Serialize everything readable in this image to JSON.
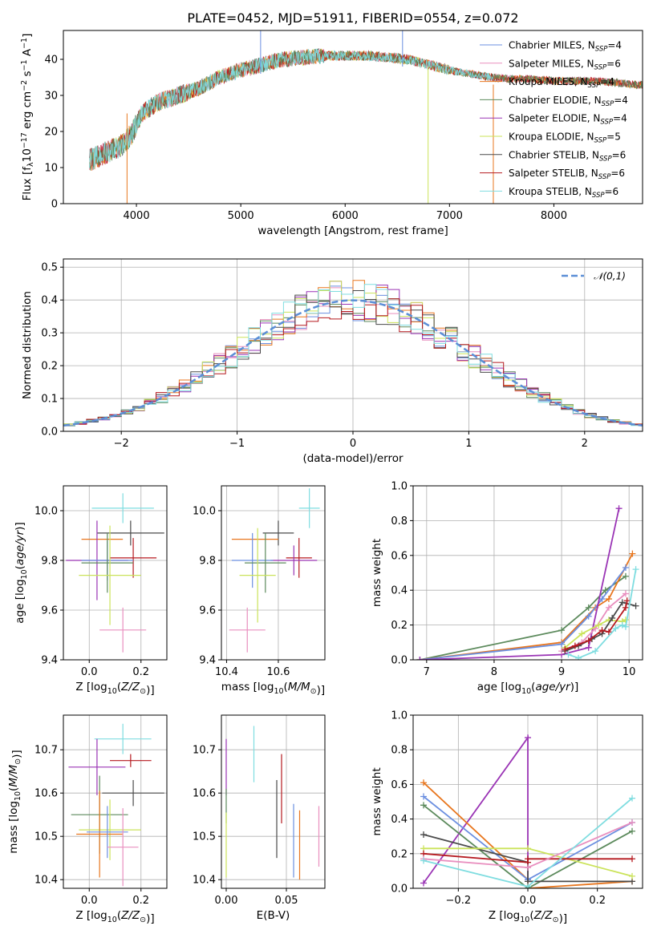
{
  "title": "PLATE=0452, MJD=51911, FIBERID=0554, z=0.072",
  "colors": {
    "chabrier_miles": "#6b8fe0",
    "salpeter_miles": "#e98fbf",
    "kroupa_miles": "#e8761e",
    "chabrier_elodie": "#5c8a5c",
    "salpeter_elodie": "#9a34b5",
    "kroupa_elodie": "#cbe35a",
    "chabrier_stelib": "#4a4a4a",
    "salpeter_stelib": "#b5191f",
    "kroupa_stelib": "#7fdde0",
    "spectrum_main": "#555555",
    "normal_curve": "#5b8ed6",
    "grid": "#b0b0b0"
  },
  "chart_data": [
    {
      "type": "line",
      "xlabel": "wavelength [Angstrom, rest frame]",
      "ylabel": "Flux [f_λ 10^-17 erg cm^-2 s^-1 A^-1]",
      "xlim": [
        3300,
        8850
      ],
      "ylim": [
        0,
        48
      ],
      "xticks": [
        4000,
        5000,
        6000,
        7000,
        8000
      ],
      "yticks": [
        0,
        10,
        20,
        30,
        40
      ],
      "grid": false,
      "legend_position": "top-right",
      "legend": [
        {
          "key": "chabrier_miles",
          "label": "Chabrier MILES, N",
          "sub": "SSP",
          "val": "=4"
        },
        {
          "key": "salpeter_miles",
          "label": "Salpeter MILES, N",
          "sub": "SSP",
          "val": "=6"
        },
        {
          "key": "kroupa_miles",
          "label": "Kroupa MILES, N",
          "sub": "SSP",
          "val": "=4"
        },
        {
          "key": "chabrier_elodie",
          "label": "Chabrier ELODIE, N",
          "sub": "SSP",
          "val": "=4"
        },
        {
          "key": "salpeter_elodie",
          "label": "Salpeter ELODIE, N",
          "sub": "SSP",
          "val": "=4"
        },
        {
          "key": "kroupa_elodie",
          "label": "Kroupa ELODIE, N",
          "sub": "SSP",
          "val": "=5"
        },
        {
          "key": "chabrier_stelib",
          "label": "Chabrier STELIB, N",
          "sub": "SSP",
          "val": "=6"
        },
        {
          "key": "salpeter_stelib",
          "label": "Salpeter STELIB, N",
          "sub": "SSP",
          "val": "=6"
        },
        {
          "key": "kroupa_stelib",
          "label": "Kroupa STELIB, N",
          "sub": "SSP",
          "val": "=6"
        }
      ],
      "continuum": {
        "x": [
          3550,
          3700,
          3850,
          3950,
          4050,
          4200,
          4400,
          4600,
          4800,
          5000,
          5200,
          5400,
          5600,
          5800,
          6000,
          6200,
          6400,
          6600,
          6800,
          7000,
          7200,
          7400,
          7600,
          7800,
          8000,
          8200,
          8400,
          8600,
          8800
        ],
        "y": [
          12,
          14,
          16,
          19,
          25,
          28,
          30,
          32,
          35,
          37,
          38.5,
          40,
          40.5,
          41,
          41,
          41,
          40.5,
          40,
          38.5,
          37,
          36,
          35,
          34.5,
          34.5,
          34,
          34,
          34,
          33.5,
          33
        ]
      },
      "spikes": [
        {
          "x": 3910,
          "y0": 0,
          "y1": 25,
          "series": "kroupa_miles"
        },
        {
          "x": 6795,
          "y0": 0,
          "y1": 38,
          "series": "kroupa_elodie"
        },
        {
          "x": 7420,
          "y0": 0,
          "y1": 33,
          "series": "kroupa_miles"
        },
        {
          "x": 5190,
          "y0": 36,
          "y1": 48,
          "series": "chabrier_miles"
        },
        {
          "x": 6550,
          "y0": 38,
          "y1": 48,
          "series": "chabrier_miles"
        }
      ]
    },
    {
      "type": "histogram",
      "xlabel": "(data-model)/error",
      "ylabel": "Normed distribution",
      "xlim": [
        -2.5,
        2.5
      ],
      "ylim": [
        0,
        0.525
      ],
      "xticks": [
        -2,
        -1,
        0,
        1,
        2
      ],
      "yticks": [
        0.0,
        0.1,
        0.2,
        0.3,
        0.4,
        0.5
      ],
      "grid": true,
      "legend_position": "top-right",
      "bin_edges_range": [
        -2.5,
        2.5
      ],
      "bin_count": 50,
      "reference_curve": {
        "label": "𝒩(0,1)",
        "mean": 0,
        "sigma": 1
      }
    },
    {
      "type": "scatter",
      "xlabel": "Z [log10(Z/Z⊙)]",
      "ylabel": "age [log10(age/yr)]",
      "xlim": [
        -0.1,
        0.3
      ],
      "ylim": [
        9.4,
        10.1
      ],
      "xticks": [
        0.0,
        0.2
      ],
      "yticks": [
        9.4,
        9.6,
        9.8,
        10.0
      ],
      "grid": true,
      "points": [
        {
          "s": "kroupa_stelib",
          "x": 0.13,
          "y": 10.01,
          "xe": 0.12,
          "ye": 0.06
        },
        {
          "s": "chabrier_stelib",
          "x": 0.16,
          "y": 9.91,
          "xe": 0.13,
          "ye": 0.05
        },
        {
          "s": "kroupa_miles",
          "x": 0.05,
          "y": 9.885,
          "xe": 0.08,
          "ye": 0.0
        },
        {
          "s": "salpeter_stelib",
          "x": 0.17,
          "y": 9.81,
          "xe": 0.09,
          "ye": 0.08
        },
        {
          "s": "salpeter_elodie",
          "x": 0.03,
          "y": 9.8,
          "xe": 0.12,
          "ye": 0.16
        },
        {
          "s": "chabrier_miles",
          "x": 0.07,
          "y": 9.8,
          "xe": 0.1,
          "ye": 0.08
        },
        {
          "s": "chabrier_elodie",
          "x": 0.07,
          "y": 9.79,
          "xe": 0.1,
          "ye": 0.12
        },
        {
          "s": "kroupa_elodie",
          "x": 0.08,
          "y": 9.74,
          "xe": 0.12,
          "ye": 0.2
        },
        {
          "s": "salpeter_miles",
          "x": 0.13,
          "y": 9.52,
          "xe": 0.09,
          "ye": 0.09
        }
      ]
    },
    {
      "type": "scatter",
      "xlabel": "mass [log10(M/M⊙)]",
      "ylabel": "",
      "xlim": [
        10.38,
        10.78
      ],
      "ylim": [
        9.4,
        10.1
      ],
      "xticks": [
        10.4,
        10.6
      ],
      "yticks": [
        9.4,
        9.6,
        9.8,
        10.0
      ],
      "grid": true,
      "points": [
        {
          "s": "kroupa_stelib",
          "x": 10.72,
          "y": 10.01,
          "xe": 0.04,
          "ye": 0.08
        },
        {
          "s": "chabrier_stelib",
          "x": 10.6,
          "y": 9.91,
          "xe": 0.06,
          "ye": 0.05
        },
        {
          "s": "kroupa_miles",
          "x": 10.51,
          "y": 9.885,
          "xe": 0.09,
          "ye": 0.0
        },
        {
          "s": "salpeter_stelib",
          "x": 10.68,
          "y": 9.81,
          "xe": 0.05,
          "ye": 0.08
        },
        {
          "s": "salpeter_elodie",
          "x": 10.66,
          "y": 9.8,
          "xe": 0.09,
          "ye": 0.06
        },
        {
          "s": "chabrier_miles",
          "x": 10.5,
          "y": 9.8,
          "xe": 0.08,
          "ye": 0.11
        },
        {
          "s": "chabrier_elodie",
          "x": 10.55,
          "y": 9.79,
          "xe": 0.08,
          "ye": 0.12
        },
        {
          "s": "kroupa_elodie",
          "x": 10.52,
          "y": 9.74,
          "xe": 0.07,
          "ye": 0.19
        },
        {
          "s": "salpeter_miles",
          "x": 10.48,
          "y": 9.52,
          "xe": 0.07,
          "ye": 0.09
        }
      ]
    },
    {
      "type": "line",
      "xlabel": "age [log10(age/yr)]",
      "ylabel": "mass weight",
      "xlim": [
        6.8,
        10.2
      ],
      "ylim": [
        0,
        1.0
      ],
      "xticks": [
        7,
        8,
        9,
        10
      ],
      "yticks": [
        0.0,
        0.2,
        0.4,
        0.6,
        0.8,
        1.0
      ],
      "grid": true,
      "series": [
        {
          "s": "chabrier_elodie",
          "x": [
            6.9,
            9.0,
            9.4,
            9.65,
            9.95
          ],
          "y": [
            0.0,
            0.17,
            0.3,
            0.4,
            0.48
          ]
        },
        {
          "s": "kroupa_miles",
          "x": [
            6.9,
            9.0,
            9.5,
            9.7,
            10.05
          ],
          "y": [
            0.0,
            0.1,
            0.3,
            0.35,
            0.61
          ]
        },
        {
          "s": "chabrier_miles",
          "x": [
            6.9,
            9.0,
            9.4,
            9.6,
            9.95
          ],
          "y": [
            0.0,
            0.09,
            0.25,
            0.35,
            0.53
          ]
        },
        {
          "s": "salpeter_elodie",
          "x": [
            6.9,
            9.0,
            9.4,
            9.85
          ],
          "y": [
            0.0,
            0.03,
            0.07,
            0.87
          ]
        },
        {
          "s": "salpeter_miles",
          "x": [
            9.0,
            9.3,
            9.5,
            9.7,
            9.95
          ],
          "y": [
            0.05,
            0.1,
            0.18,
            0.3,
            0.38
          ]
        },
        {
          "s": "kroupa_elodie",
          "x": [
            9.05,
            9.3,
            9.55,
            9.7,
            9.9,
            9.95
          ],
          "y": [
            0.07,
            0.15,
            0.2,
            0.23,
            0.22,
            0.23
          ]
        },
        {
          "s": "chabrier_stelib",
          "x": [
            9.05,
            9.25,
            9.45,
            9.6,
            9.75,
            9.9,
            10.1
          ],
          "y": [
            0.05,
            0.08,
            0.12,
            0.15,
            0.24,
            0.33,
            0.31
          ]
        },
        {
          "s": "salpeter_stelib",
          "x": [
            9.05,
            9.2,
            9.4,
            9.6,
            9.7,
            9.95,
            9.97
          ],
          "y": [
            0.06,
            0.08,
            0.11,
            0.17,
            0.16,
            0.3,
            0.34
          ]
        },
        {
          "s": "kroupa_stelib",
          "x": [
            9.1,
            9.25,
            9.5,
            9.8,
            9.9,
            9.95,
            10.1
          ],
          "y": [
            0.03,
            0.01,
            0.05,
            0.18,
            0.2,
            0.19,
            0.52
          ]
        }
      ]
    },
    {
      "type": "scatter",
      "xlabel": "Z [log10(Z/Z⊙)]",
      "ylabel": "mass [log10(M/M⊙)]",
      "xlim": [
        -0.1,
        0.3
      ],
      "ylim": [
        10.38,
        10.78
      ],
      "xticks": [
        0.0,
        0.2
      ],
      "yticks": [
        10.4,
        10.5,
        10.6,
        10.7
      ],
      "grid": true,
      "points": [
        {
          "s": "kroupa_stelib",
          "x": 0.13,
          "y": 10.725,
          "xe": 0.11,
          "ye": 0.035
        },
        {
          "s": "salpeter_stelib",
          "x": 0.16,
          "y": 10.675,
          "xe": 0.08,
          "ye": 0.015
        },
        {
          "s": "salpeter_elodie",
          "x": 0.03,
          "y": 10.66,
          "xe": 0.11,
          "ye": 0.065
        },
        {
          "s": "chabrier_stelib",
          "x": 0.17,
          "y": 10.6,
          "xe": 0.12,
          "ye": 0.03
        },
        {
          "s": "chabrier_elodie",
          "x": 0.04,
          "y": 10.55,
          "xe": 0.11,
          "ye": 0.09
        },
        {
          "s": "kroupa_elodie",
          "x": 0.08,
          "y": 10.515,
          "xe": 0.12,
          "ye": 0.07
        },
        {
          "s": "kroupa_miles",
          "x": 0.04,
          "y": 10.505,
          "xe": 0.09,
          "ye": 0.1
        },
        {
          "s": "chabrier_miles",
          "x": 0.07,
          "y": 10.51,
          "xe": 0.08,
          "ye": 0.06
        },
        {
          "s": "salpeter_miles",
          "x": 0.13,
          "y": 10.475,
          "xe": 0.06,
          "ye": 0.09
        }
      ]
    },
    {
      "type": "scatter",
      "xlabel": "E(B-V)",
      "ylabel": "",
      "xlim": [
        -0.004,
        0.082
      ],
      "ylim": [
        10.38,
        10.78
      ],
      "xticks": [
        0.0,
        0.05
      ],
      "yticks": [
        10.4,
        10.5,
        10.6,
        10.7
      ],
      "grid": true,
      "points": [
        {
          "s": "salpeter_elodie",
          "x": 0.0,
          "y": 10.66,
          "ye": 0.065
        },
        {
          "s": "chabrier_elodie",
          "x": 0.0,
          "y": 10.57,
          "ye": 0.04
        },
        {
          "s": "kroupa_elodie",
          "x": 0.0,
          "y": 10.48,
          "ye": 0.075
        },
        {
          "s": "kroupa_stelib",
          "x": 0.023,
          "y": 10.69,
          "ye": 0.065
        },
        {
          "s": "chabrier_stelib",
          "x": 0.042,
          "y": 10.54,
          "ye": 0.09
        },
        {
          "s": "salpeter_stelib",
          "x": 0.046,
          "y": 10.61,
          "ye": 0.08
        },
        {
          "s": "chabrier_miles",
          "x": 0.056,
          "y": 10.49,
          "ye": 0.085
        },
        {
          "s": "kroupa_miles",
          "x": 0.061,
          "y": 10.48,
          "ye": 0.08
        },
        {
          "s": "salpeter_miles",
          "x": 0.077,
          "y": 10.5,
          "ye": 0.07
        }
      ]
    },
    {
      "type": "line",
      "xlabel": "Z [log10(Z/Z⊙)]",
      "ylabel": "mass weight",
      "xlim": [
        -0.33,
        0.33
      ],
      "ylim": [
        0,
        1.0
      ],
      "xticks": [
        -0.2,
        0.0,
        0.2
      ],
      "yticks": [
        0.0,
        0.2,
        0.4,
        0.6,
        0.8,
        1.0
      ],
      "grid": true,
      "series": [
        {
          "s": "salpeter_elodie",
          "x": [
            -0.3,
            0.0,
            0.0,
            0.0
          ],
          "y": [
            0.03,
            0.87,
            0.05,
            0.0
          ]
        },
        {
          "s": "kroupa_miles",
          "x": [
            -0.3,
            0.0,
            0.0,
            0.3
          ],
          "y": [
            0.61,
            0.05,
            0.0,
            0.04
          ]
        },
        {
          "s": "chabrier_miles",
          "x": [
            -0.3,
            0.0,
            0.3
          ],
          "y": [
            0.53,
            0.05,
            0.38
          ]
        },
        {
          "s": "chabrier_elodie",
          "x": [
            -0.3,
            0.0,
            0.3
          ],
          "y": [
            0.48,
            0.0,
            0.33
          ]
        },
        {
          "s": "chabrier_stelib",
          "x": [
            -0.3,
            0.0,
            0.0,
            0.3
          ],
          "y": [
            0.31,
            0.15,
            0.04,
            0.04
          ]
        },
        {
          "s": "kroupa_elodie",
          "x": [
            -0.3,
            0.0,
            0.3
          ],
          "y": [
            0.23,
            0.23,
            0.07
          ]
        },
        {
          "s": "salpeter_stelib",
          "x": [
            -0.3,
            0.0,
            0.0,
            0.3
          ],
          "y": [
            0.2,
            0.15,
            0.17,
            0.17
          ]
        },
        {
          "s": "salpeter_miles",
          "x": [
            -0.3,
            0.0,
            0.3
          ],
          "y": [
            0.17,
            0.12,
            0.38
          ]
        },
        {
          "s": "kroupa_stelib",
          "x": [
            -0.3,
            0.0,
            0.3
          ],
          "y": [
            0.16,
            0.01,
            0.52
          ]
        }
      ]
    }
  ]
}
